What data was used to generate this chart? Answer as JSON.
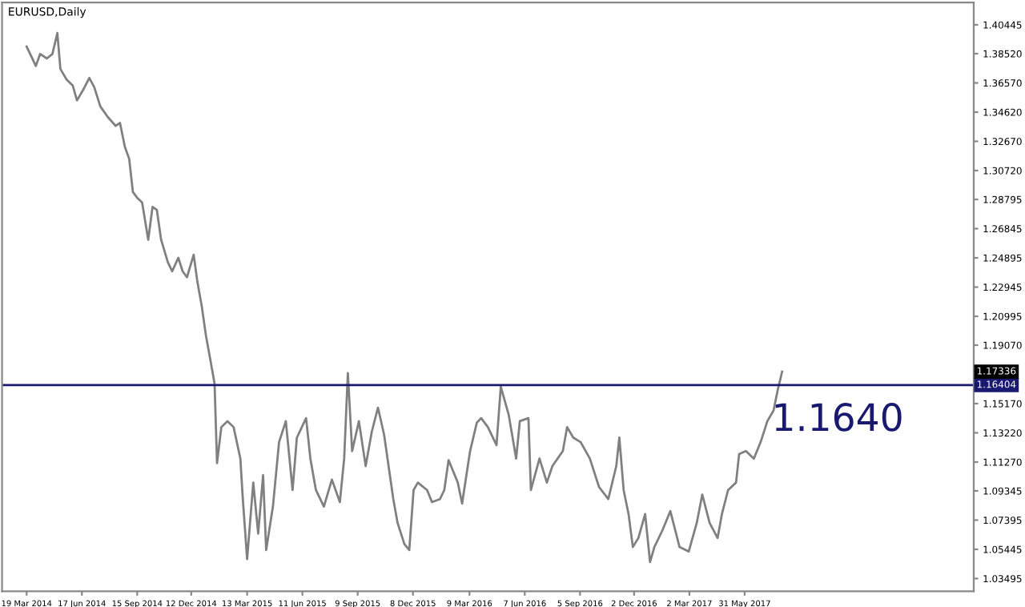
{
  "chart_data": {
    "type": "line",
    "title": "EURUSD,Daily",
    "x": [
      "2014-03-19",
      "2014-03-26",
      "2014-04-03",
      "2014-04-10",
      "2014-04-21",
      "2014-04-30",
      "2014-05-08",
      "2014-05-13",
      "2014-05-23",
      "2014-06-02",
      "2014-06-09",
      "2014-06-19",
      "2014-06-29",
      "2014-07-07",
      "2014-07-17",
      "2014-07-29",
      "2014-08-11",
      "2014-08-18",
      "2014-08-26",
      "2014-09-02",
      "2014-09-08",
      "2014-09-15",
      "2014-09-23",
      "2014-10-03",
      "2014-10-10",
      "2014-10-17",
      "2014-10-24",
      "2014-11-04",
      "2014-11-11",
      "2014-11-21",
      "2014-11-28",
      "2014-12-05",
      "2014-12-16",
      "2014-12-22",
      "2014-12-29",
      "2015-01-05",
      "2015-01-13",
      "2015-01-19",
      "2015-01-23",
      "2015-01-30",
      "2015-02-09",
      "2015-02-19",
      "2015-03-02",
      "2015-03-06",
      "2015-03-13",
      "2015-03-23",
      "2015-03-31",
      "2015-04-08",
      "2015-04-13",
      "2015-04-24",
      "2015-05-04",
      "2015-05-15",
      "2015-05-26",
      "2015-06-02",
      "2015-06-17",
      "2015-06-24",
      "2015-07-03",
      "2015-07-16",
      "2015-07-29",
      "2015-08-11",
      "2015-08-18",
      "2015-08-24",
      "2015-08-31",
      "2015-09-11",
      "2015-09-22",
      "2015-10-02",
      "2015-10-12",
      "2015-10-22",
      "2015-10-30",
      "2015-11-06",
      "2015-11-13",
      "2015-11-24",
      "2015-12-02",
      "2015-12-09",
      "2015-12-16",
      "2015-12-31",
      "2016-01-08",
      "2016-01-21",
      "2016-01-28",
      "2016-02-04",
      "2016-02-19",
      "2016-02-26",
      "2016-03-10",
      "2016-03-21",
      "2016-03-28",
      "2016-04-08",
      "2016-04-22",
      "2016-04-29",
      "2016-05-12",
      "2016-05-24",
      "2016-05-30",
      "2016-06-13",
      "2016-06-17",
      "2016-07-01",
      "2016-07-13",
      "2016-07-22",
      "2016-08-08",
      "2016-08-15",
      "2016-08-25",
      "2016-09-06",
      "2016-09-21",
      "2016-10-06",
      "2016-10-21",
      "2016-11-03",
      "2016-11-08",
      "2016-11-15",
      "2016-11-23",
      "2016-11-30",
      "2016-12-09",
      "2016-12-20",
      "2016-12-28",
      "2017-01-04",
      "2017-01-17",
      "2017-01-30",
      "2017-02-14",
      "2017-03-01",
      "2017-03-14",
      "2017-03-23",
      "2017-04-04",
      "2017-04-17",
      "2017-04-24",
      "2017-05-04",
      "2017-05-17",
      "2017-05-22",
      "2017-06-02",
      "2017-06-15",
      "2017-06-26",
      "2017-07-07",
      "2017-07-17",
      "2017-07-24",
      "2017-07-31"
    ],
    "series": [
      {
        "color": "#808080",
        "values": [
          1.39,
          1.384,
          1.377,
          1.385,
          1.382,
          1.385,
          1.399,
          1.375,
          1.368,
          1.364,
          1.354,
          1.361,
          1.369,
          1.363,
          1.35,
          1.343,
          1.337,
          1.339,
          1.323,
          1.315,
          1.293,
          1.289,
          1.286,
          1.261,
          1.283,
          1.281,
          1.261,
          1.246,
          1.24,
          1.249,
          1.24,
          1.236,
          1.251,
          1.233,
          1.217,
          1.197,
          1.179,
          1.165,
          1.112,
          1.136,
          1.14,
          1.136,
          1.115,
          1.088,
          1.048,
          1.099,
          1.065,
          1.104,
          1.054,
          1.083,
          1.126,
          1.14,
          1.094,
          1.129,
          1.142,
          1.115,
          1.094,
          1.083,
          1.101,
          1.086,
          1.115,
          1.172,
          1.12,
          1.14,
          1.11,
          1.133,
          1.149,
          1.131,
          1.108,
          1.088,
          1.072,
          1.058,
          1.054,
          1.094,
          1.099,
          1.094,
          1.086,
          1.088,
          1.094,
          1.114,
          1.099,
          1.085,
          1.12,
          1.139,
          1.142,
          1.136,
          1.124,
          1.163,
          1.144,
          1.115,
          1.14,
          1.142,
          1.094,
          1.115,
          1.099,
          1.11,
          1.12,
          1.136,
          1.129,
          1.126,
          1.115,
          1.096,
          1.088,
          1.11,
          1.129,
          1.094,
          1.078,
          1.056,
          1.062,
          1.078,
          1.046,
          1.056,
          1.067,
          1.08,
          1.056,
          1.053,
          1.072,
          1.091,
          1.072,
          1.062,
          1.078,
          1.094,
          1.099,
          1.118,
          1.12,
          1.115,
          1.126,
          1.14,
          1.147,
          1.161,
          1.173
        ]
      }
    ],
    "xlim": [
      "2014-02-07",
      "2018-06-08"
    ],
    "ylim": [
      1.0265,
      1.4194
    ],
    "xticks": [
      {
        "value": "2014-03-19",
        "label": "19 Mar 2014"
      },
      {
        "value": "2014-06-17",
        "label": "17 Jun 2014"
      },
      {
        "value": "2014-09-15",
        "label": "15 Sep 2014"
      },
      {
        "value": "2014-12-12",
        "label": "12 Dec 2014"
      },
      {
        "value": "2015-03-13",
        "label": "13 Mar 2015"
      },
      {
        "value": "2015-06-11",
        "label": "11 Jun 2015"
      },
      {
        "value": "2015-09-09",
        "label": "9 Sep 2015"
      },
      {
        "value": "2015-12-08",
        "label": "8 Dec 2015"
      },
      {
        "value": "2016-03-09",
        "label": "9 Mar 2016"
      },
      {
        "value": "2016-06-07",
        "label": "7 Jun 2016"
      },
      {
        "value": "2016-09-05",
        "label": "5 Sep 2016"
      },
      {
        "value": "2016-12-02",
        "label": "2 Dec 2016"
      },
      {
        "value": "2017-03-02",
        "label": "2 Mar 2017"
      },
      {
        "value": "2017-05-31",
        "label": "31 May 2017"
      }
    ],
    "yticks": [
      {
        "value": 1.40445,
        "label": "1.40445"
      },
      {
        "value": 1.3852,
        "label": "1.38520"
      },
      {
        "value": 1.3657,
        "label": "1.36570"
      },
      {
        "value": 1.3462,
        "label": "1.34620"
      },
      {
        "value": 1.3267,
        "label": "1.32670"
      },
      {
        "value": 1.3072,
        "label": "1.30720"
      },
      {
        "value": 1.28795,
        "label": "1.28795"
      },
      {
        "value": 1.26845,
        "label": "1.26845"
      },
      {
        "value": 1.24895,
        "label": "1.24895"
      },
      {
        "value": 1.22945,
        "label": "1.22945"
      },
      {
        "value": 1.20995,
        "label": "1.20995"
      },
      {
        "value": 1.1907,
        "label": "1.19070"
      },
      {
        "value": 1.1517,
        "label": "1.15170"
      },
      {
        "value": 1.1322,
        "label": "1.13220"
      },
      {
        "value": 1.1127,
        "label": "1.11270"
      },
      {
        "value": 1.09345,
        "label": "1.09345"
      },
      {
        "value": 1.07395,
        "label": "1.07395"
      },
      {
        "value": 1.05445,
        "label": "1.05445"
      },
      {
        "value": 1.03495,
        "label": "1.03495"
      }
    ],
    "ref_lines": [
      {
        "axis": "y",
        "value": 1.16404,
        "label": "1.16404",
        "color": "#191970"
      }
    ],
    "annotations": [
      "1.1640",
      "1.17336"
    ],
    "grid": false,
    "legend": false,
    "marker": "none",
    "line_style": "solid"
  }
}
